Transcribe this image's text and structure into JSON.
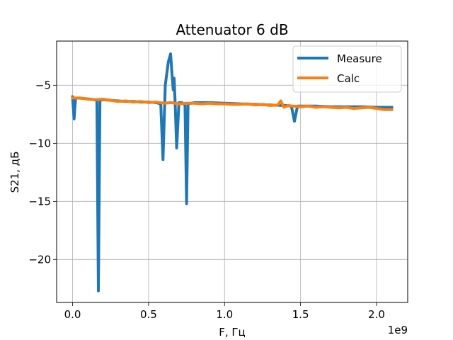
{
  "chart_data": {
    "type": "line",
    "title": "Attenuator 6 dB",
    "xlabel": "F, Гц",
    "ylabel": "S21, дБ",
    "x_offset_text": "1e9",
    "x_ticks": [
      0.0,
      0.5,
      1.0,
      1.5,
      2.0
    ],
    "x_tick_labels": [
      "0.0",
      "0.5",
      "1.0",
      "1.5",
      "2.0"
    ],
    "y_ticks": [
      -5,
      -10,
      -15,
      -20
    ],
    "y_tick_labels": [
      "−5",
      "−10",
      "−15",
      "−20"
    ],
    "xlim": [
      -0.105,
      2.205
    ],
    "ylim": [
      -23.7,
      -1.2
    ],
    "grid": true,
    "legend_position": "top-right",
    "series": [
      {
        "name": "Measure",
        "color": "#1f77b4",
        "x": [
          0.0,
          0.01,
          0.02,
          0.04,
          0.08,
          0.12,
          0.16,
          0.17,
          0.18,
          0.2,
          0.25,
          0.3,
          0.35,
          0.4,
          0.45,
          0.5,
          0.55,
          0.58,
          0.595,
          0.61,
          0.63,
          0.645,
          0.655,
          0.662,
          0.668,
          0.675,
          0.685,
          0.7,
          0.72,
          0.74,
          0.75,
          0.76,
          0.8,
          0.85,
          0.9,
          1.0,
          1.1,
          1.2,
          1.3,
          1.4,
          1.44,
          1.46,
          1.48,
          1.5,
          1.6,
          1.7,
          1.8,
          1.9,
          2.0,
          2.1
        ],
        "y": [
          -6.0,
          -7.9,
          -6.1,
          -6.1,
          -6.15,
          -6.2,
          -6.3,
          -22.7,
          -6.3,
          -6.25,
          -6.3,
          -6.35,
          -6.4,
          -6.4,
          -6.45,
          -6.45,
          -6.5,
          -6.6,
          -11.4,
          -5.0,
          -3.0,
          -2.3,
          -4.2,
          -5.4,
          -4.4,
          -6.6,
          -10.4,
          -6.5,
          -6.5,
          -6.7,
          -15.2,
          -6.6,
          -6.5,
          -6.5,
          -6.5,
          -6.55,
          -6.6,
          -6.65,
          -6.7,
          -6.75,
          -6.8,
          -8.1,
          -6.8,
          -6.8,
          -6.8,
          -6.85,
          -6.85,
          -6.85,
          -6.9,
          -6.9
        ]
      },
      {
        "name": "Calc",
        "color": "#ff7f0e",
        "x": [
          0.0,
          0.05,
          0.1,
          0.15,
          0.2,
          0.25,
          0.3,
          0.35,
          0.4,
          0.45,
          0.5,
          0.55,
          0.6,
          0.65,
          0.7,
          0.75,
          0.8,
          0.85,
          0.9,
          0.95,
          1.0,
          1.05,
          1.1,
          1.15,
          1.2,
          1.25,
          1.3,
          1.35,
          1.37,
          1.39,
          1.42,
          1.45,
          1.5,
          1.55,
          1.6,
          1.65,
          1.7,
          1.75,
          1.8,
          1.85,
          1.9,
          1.95,
          2.0,
          2.05,
          2.1
        ],
        "y": [
          -6.1,
          -6.1,
          -6.2,
          -6.25,
          -6.2,
          -6.3,
          -6.4,
          -6.35,
          -6.45,
          -6.4,
          -6.5,
          -6.45,
          -6.55,
          -6.5,
          -6.6,
          -6.55,
          -6.55,
          -6.6,
          -6.55,
          -6.6,
          -6.6,
          -6.65,
          -6.65,
          -6.6,
          -6.7,
          -6.65,
          -6.75,
          -6.7,
          -6.35,
          -6.9,
          -6.75,
          -6.8,
          -6.85,
          -6.8,
          -6.9,
          -6.85,
          -6.9,
          -6.95,
          -6.9,
          -7.0,
          -6.95,
          -6.9,
          -7.0,
          -7.1,
          -7.1
        ]
      }
    ]
  }
}
